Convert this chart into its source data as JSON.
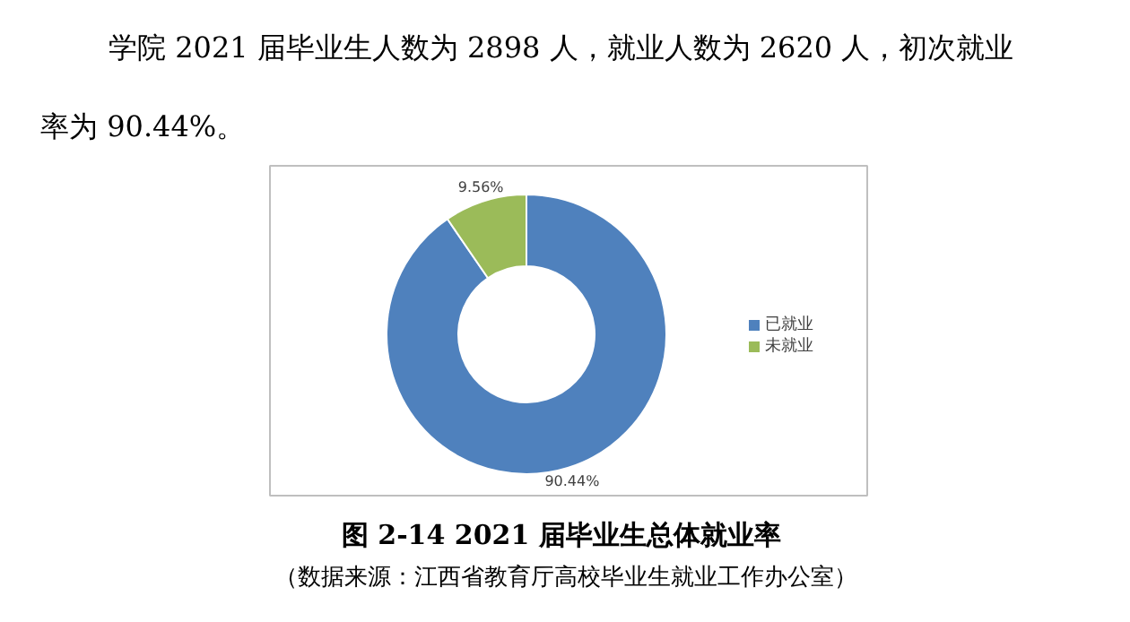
{
  "chart_data": {
    "type": "donut",
    "title": "图 2-14  2021 届毕业生总体就业率",
    "categories": [
      "已就业",
      "未就业"
    ],
    "values": [
      90.44,
      9.56
    ],
    "colors": [
      "#4f81bd",
      "#9bbb59"
    ],
    "value_labels": [
      "90.44%",
      "9.56%"
    ],
    "legend": "right",
    "annotations": [
      "学院 2021 届毕业生人数为 2898 人，就业人数为 2620 人，初次就业",
      "率为 90.44%。",
      "（数据来源：江西省教育厅高校毕业生就业工作办公室）"
    ]
  }
}
